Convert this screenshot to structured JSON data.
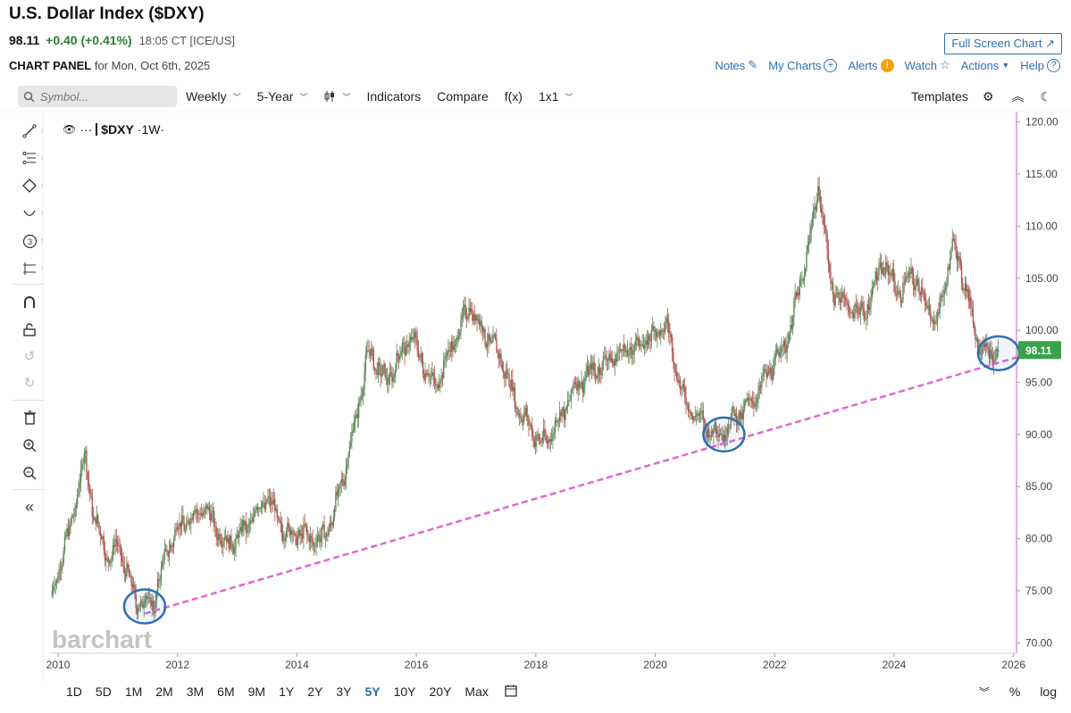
{
  "header": {
    "title": "U.S. Dollar Index ($DXY)",
    "last": "98.11",
    "change": "+0.40 (+0.41%)",
    "time": "18:05 CT [ICE/US]",
    "full_screen": "Full Screen Chart",
    "panel": "CHART PANEL",
    "panel_date": "for Mon, Oct 6th, 2025"
  },
  "links": {
    "notes": "Notes",
    "my_charts": "My Charts",
    "alerts": "Alerts",
    "watch": "Watch",
    "actions": "Actions",
    "help": "Help"
  },
  "toolbar": {
    "search_placeholder": "Symbol...",
    "interval": "Weekly",
    "period": "5-Year",
    "indicators": "Indicators",
    "compare": "Compare",
    "fx": "f(x)",
    "layout": "1x1",
    "templates": "Templates"
  },
  "series_label": {
    "symbol": "$DXY",
    "interval": "·1W·"
  },
  "watermark": "barchart",
  "range_buttons": [
    "1D",
    "5D",
    "1M",
    "2M",
    "3M",
    "6M",
    "9M",
    "1Y",
    "2Y",
    "3Y",
    "5Y",
    "10Y",
    "20Y",
    "Max"
  ],
  "active_range": "5Y",
  "bottom_right": {
    "percent": "%",
    "log": "log"
  },
  "colors": {
    "up": "#5d8a5a",
    "down": "#a9584f",
    "trendline": "#e066d6",
    "circle": "#2f6fb3",
    "last_price_bg": "#3aa14c",
    "axis_line": "#d25ad0"
  },
  "icons": [
    "search-icon",
    "gear-icon",
    "collapse-icon",
    "moon-icon",
    "eye-icon",
    "star-icon",
    "plus-circle-icon",
    "alert-icon",
    "help-icon",
    "calendar-icon",
    "edit-icon"
  ],
  "chart_data": {
    "type": "candlestick",
    "symbol": "$DXY",
    "interval": "1W",
    "ylim": [
      69,
      121
    ],
    "xlim": [
      2009.85,
      2026.05
    ],
    "y_ticks": [
      "120.00",
      "115.00",
      "110.00",
      "105.00",
      "100.00",
      "95.00",
      "90.00",
      "85.00",
      "80.00",
      "75.00",
      "70.00"
    ],
    "x_ticks": [
      "2010",
      "2012",
      "2014",
      "2016",
      "2018",
      "2020",
      "2022",
      "2024",
      "2026"
    ],
    "last_price": "98.11",
    "series": [
      {
        "name": "$DXY",
        "x": [
          2009.9,
          2010.0,
          2010.2,
          2010.45,
          2010.6,
          2010.85,
          2011.0,
          2011.3,
          2011.6,
          2011.8,
          2012.0,
          2012.45,
          2012.8,
          2013.0,
          2013.5,
          2013.8,
          2014.0,
          2014.4,
          2014.6,
          2014.9,
          2015.2,
          2015.5,
          2015.9,
          2016.3,
          2016.9,
          2017.0,
          2017.4,
          2017.7,
          2018.1,
          2018.3,
          2018.7,
          2019.3,
          2019.7,
          2020.2,
          2020.3,
          2020.5,
          2020.9,
          2021.1,
          2021.3,
          2021.6,
          2021.9,
          2022.2,
          2022.5,
          2022.74,
          2022.95,
          2023.3,
          2023.5,
          2023.8,
          2024.1,
          2024.3,
          2024.7,
          2025.0,
          2025.2,
          2025.4,
          2025.6,
          2025.76
        ],
        "values": [
          74.5,
          77.0,
          81.0,
          88.0,
          82.0,
          78.0,
          79.5,
          74.0,
          73.8,
          78.5,
          81.0,
          83.0,
          79.5,
          80.0,
          84.0,
          80.5,
          80.5,
          79.8,
          82.0,
          89.0,
          98.0,
          95.0,
          99.5,
          94.5,
          102.5,
          101.0,
          97.5,
          92.5,
          89.0,
          90.5,
          95.0,
          97.5,
          98.5,
          100.5,
          97.5,
          93.0,
          90.5,
          90.0,
          91.5,
          93.0,
          96.0,
          99.0,
          106.0,
          114.0,
          104.0,
          102.0,
          101.5,
          106.5,
          103.5,
          105.5,
          100.5,
          108.5,
          104.0,
          99.0,
          97.5,
          98.11
        ]
      }
    ],
    "trendline": {
      "from": [
        2011.45,
        72.8
      ],
      "to": [
        2026.05,
        97.4
      ],
      "style": "dashed"
    },
    "highlights": [
      {
        "x": 2011.45,
        "y": 73.5
      },
      {
        "x": 2021.15,
        "y": 90.0
      },
      {
        "x": 2025.75,
        "y": 97.8
      }
    ]
  }
}
